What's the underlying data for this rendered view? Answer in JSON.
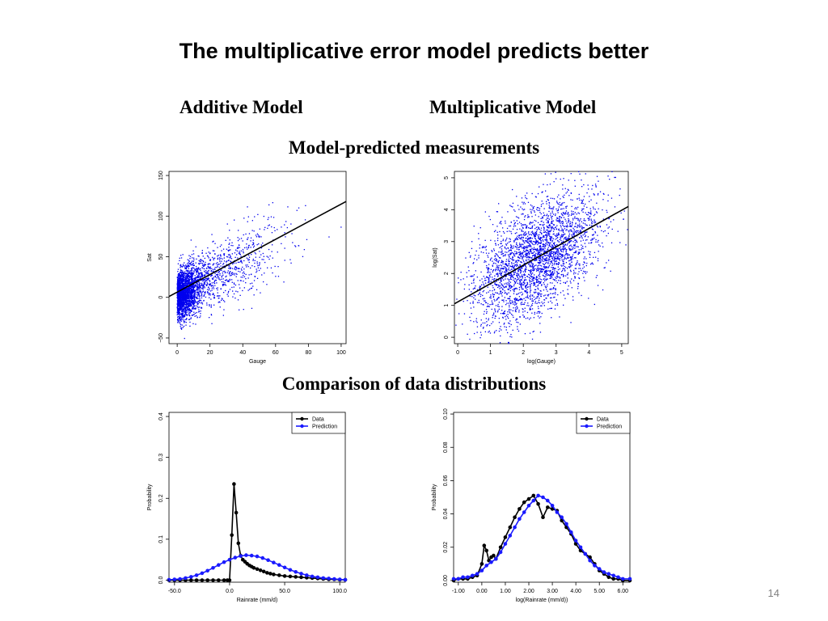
{
  "slide": {
    "title": "The multiplicative error model predicts better",
    "col_left": "Additive Model",
    "col_right": "Multiplicative Model",
    "section_top": "Model-predicted measurements",
    "section_bottom": "Comparison of data distributions",
    "page_number": "14"
  },
  "colors": {
    "data": "#000000",
    "prediction": "#1a1aff",
    "points": "#0000ee",
    "fit": "#000000"
  },
  "chart_data": [
    {
      "id": "additive-scatter",
      "type": "scatter",
      "xlabel": "Gauge",
      "ylabel": "Sat",
      "xlim": [
        -5,
        103
      ],
      "ylim": [
        -57,
        155
      ],
      "xticks": [
        0,
        20,
        40,
        60,
        80,
        100
      ],
      "yticks": [
        -50,
        0,
        50,
        100,
        150
      ],
      "fit_line": {
        "x": [
          -5,
          103
        ],
        "y": [
          1,
          118
        ]
      },
      "points_note": "dense cloud of ~5000 blue points, concentrated at Gauge 0-10, spreading upward with Gauge",
      "legend": null
    },
    {
      "id": "multiplicative-scatter",
      "type": "scatter",
      "xlabel": "log(Gauge)",
      "ylabel": "log(Sat)",
      "xlim": [
        -0.1,
        5.2
      ],
      "ylim": [
        -0.2,
        5.2
      ],
      "xticks": [
        0,
        1,
        2,
        3,
        4,
        5
      ],
      "yticks": [
        0,
        1,
        2,
        3,
        4,
        5
      ],
      "fit_line": {
        "x": [
          -0.1,
          5.2
        ],
        "y": [
          1.05,
          4.1
        ]
      },
      "legend": null
    },
    {
      "id": "additive-distribution",
      "type": "line",
      "xlabel": "Rainrate (mm/d)",
      "ylabel": "Probability",
      "xlim": [
        -55,
        105
      ],
      "ylim": [
        -0.005,
        0.41
      ],
      "xticks": [
        -50,
        0,
        50,
        100
      ],
      "yticks": [
        0.0,
        0.1,
        0.2,
        0.3,
        0.4
      ],
      "legend": [
        "Data",
        "Prediction"
      ],
      "series": [
        {
          "name": "Data",
          "x": [
            -55,
            -50,
            -45,
            -40,
            -35,
            -30,
            -25,
            -20,
            -15,
            -10,
            -5,
            -2,
            0,
            2,
            4,
            6,
            8,
            10,
            12,
            14,
            16,
            18,
            20,
            22,
            25,
            28,
            31,
            34,
            37,
            40,
            45,
            50,
            55,
            60,
            65,
            70,
            75,
            80,
            85,
            90,
            95,
            100,
            105
          ],
          "y": [
            0,
            0,
            0,
            0,
            0,
            0,
            0,
            0,
            0,
            0,
            0,
            0,
            0,
            0.11,
            0.235,
            0.165,
            0.09,
            0.06,
            0.05,
            0.045,
            0.04,
            0.036,
            0.033,
            0.03,
            0.027,
            0.024,
            0.021,
            0.018,
            0.016,
            0.014,
            0.012,
            0.01,
            0.009,
            0.008,
            0.007,
            0.006,
            0.005,
            0.004,
            0.003,
            0.002,
            0.002,
            0.001,
            0.001
          ]
        },
        {
          "name": "Prediction",
          "x": [
            -55,
            -50,
            -45,
            -40,
            -35,
            -30,
            -25,
            -20,
            -15,
            -10,
            -5,
            0,
            5,
            10,
            15,
            20,
            25,
            30,
            35,
            40,
            45,
            50,
            55,
            60,
            65,
            70,
            75,
            80,
            85,
            90,
            95,
            100,
            105
          ],
          "y": [
            0.001,
            0.002,
            0.003,
            0.005,
            0.008,
            0.012,
            0.017,
            0.023,
            0.03,
            0.037,
            0.044,
            0.05,
            0.055,
            0.059,
            0.061,
            0.06,
            0.058,
            0.054,
            0.049,
            0.043,
            0.037,
            0.031,
            0.025,
            0.02,
            0.016,
            0.012,
            0.009,
            0.007,
            0.005,
            0.004,
            0.003,
            0.002,
            0.001
          ]
        }
      ]
    },
    {
      "id": "multiplicative-distribution",
      "type": "line",
      "xlabel": "log(Rainrate (mm/d))",
      "ylabel": "Probability",
      "xlim": [
        -1.2,
        6.3
      ],
      "ylim": [
        -0.001,
        0.101
      ],
      "xticks": [
        -1,
        0,
        1,
        2,
        3,
        4,
        5,
        6
      ],
      "yticks": [
        0.0,
        0.02,
        0.04,
        0.06,
        0.08,
        0.1
      ],
      "legend": [
        "Data",
        "Prediction"
      ],
      "series": [
        {
          "name": "Data",
          "x": [
            -1.2,
            -1,
            -0.8,
            -0.6,
            -0.4,
            -0.2,
            0,
            0.1,
            0.2,
            0.3,
            0.4,
            0.5,
            0.6,
            0.8,
            1,
            1.2,
            1.4,
            1.6,
            1.8,
            2,
            2.2,
            2.4,
            2.6,
            2.8,
            3,
            3.2,
            3.4,
            3.6,
            3.8,
            4,
            4.2,
            4.4,
            4.6,
            4.8,
            5,
            5.2,
            5.4,
            5.6,
            5.8,
            6,
            6.3
          ],
          "y": [
            0,
            0.001,
            0.001,
            0.001,
            0.002,
            0.003,
            0.01,
            0.021,
            0.018,
            0.012,
            0.014,
            0.015,
            0.013,
            0.02,
            0.026,
            0.032,
            0.038,
            0.043,
            0.047,
            0.049,
            0.051,
            0.046,
            0.038,
            0.044,
            0.043,
            0.042,
            0.036,
            0.032,
            0.028,
            0.022,
            0.018,
            0.016,
            0.014,
            0.01,
            0.006,
            0.004,
            0.002,
            0.001,
            0.001,
            0,
            0
          ]
        },
        {
          "name": "Prediction",
          "x": [
            -1.2,
            -1,
            -0.8,
            -0.6,
            -0.4,
            -0.2,
            0,
            0.2,
            0.4,
            0.6,
            0.8,
            1,
            1.2,
            1.4,
            1.6,
            1.8,
            2,
            2.2,
            2.4,
            2.6,
            2.8,
            3,
            3.2,
            3.4,
            3.6,
            3.8,
            4,
            4.2,
            4.4,
            4.6,
            4.8,
            5,
            5.2,
            5.4,
            5.6,
            5.8,
            6,
            6.3
          ],
          "y": [
            0.001,
            0.001,
            0.002,
            0.002,
            0.003,
            0.004,
            0.006,
            0.009,
            0.011,
            0.013,
            0.017,
            0.022,
            0.027,
            0.032,
            0.037,
            0.041,
            0.045,
            0.048,
            0.051,
            0.05,
            0.048,
            0.045,
            0.041,
            0.038,
            0.034,
            0.029,
            0.024,
            0.02,
            0.016,
            0.012,
            0.009,
            0.007,
            0.005,
            0.004,
            0.003,
            0.002,
            0.001,
            0.001
          ]
        }
      ]
    }
  ]
}
